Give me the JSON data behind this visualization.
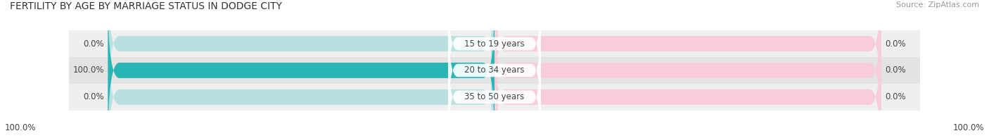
{
  "title": "FERTILITY BY AGE BY MARRIAGE STATUS IN DODGE CITY",
  "source": "Source: ZipAtlas.com",
  "categories": [
    "15 to 19 years",
    "20 to 34 years",
    "35 to 50 years"
  ],
  "married_values": [
    0.0,
    100.0,
    0.0
  ],
  "unmarried_values": [
    0.0,
    0.0,
    0.0
  ],
  "married_color": "#2ab5b5",
  "unmarried_color": "#f590aa",
  "married_light_color": "#b8e0e0",
  "unmarried_light_color": "#f9ccd9",
  "row_bg_colors": [
    "#efefef",
    "#e3e3e3",
    "#efefef"
  ],
  "bottom_left_label": "100.0%",
  "bottom_right_label": "100.0%",
  "title_fontsize": 10,
  "source_fontsize": 8,
  "bar_height": 0.58,
  "figsize": [
    14.06,
    1.96
  ],
  "dpi": 100
}
